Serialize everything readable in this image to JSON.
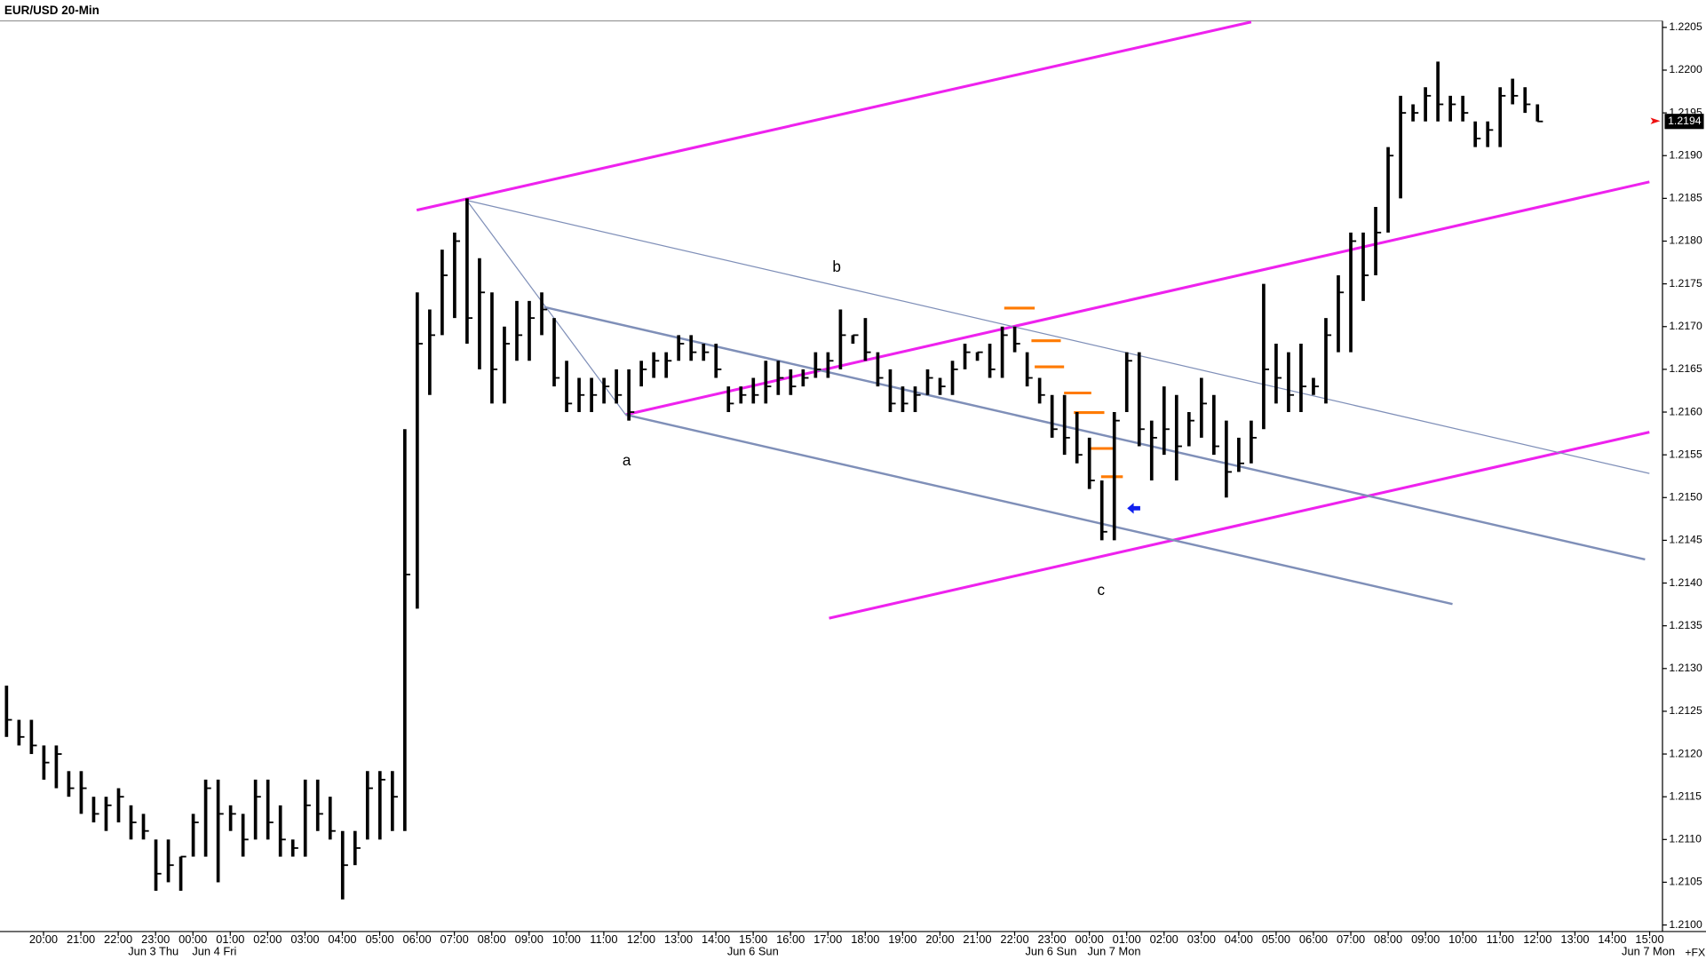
{
  "chart_data": {
    "type": "ohlc",
    "title": "EUR/USD 20-Min",
    "color": "#000000",
    "ylim": [
      1.21,
      1.2205
    ],
    "yticks": [
      1.2205,
      {
        "value": 1.22,
        "label": "1.2200"
      },
      1.2195,
      {
        "value": 1.219,
        "label": "1.2190"
      },
      1.2185,
      {
        "value": 1.218,
        "label": "1.2180"
      },
      1.2175,
      {
        "value": 1.217,
        "label": "1.2170"
      },
      1.2165,
      {
        "value": 1.216,
        "label": "1.2160"
      },
      1.2155,
      {
        "value": 1.215,
        "label": "1.2150"
      },
      1.2145,
      {
        "value": 1.214,
        "label": "1.2140"
      },
      1.2135,
      {
        "value": 1.213,
        "label": "1.2130"
      },
      1.2125,
      {
        "value": 1.212,
        "label": "1.2120"
      },
      1.2115,
      {
        "value": 1.211,
        "label": "1.2110"
      },
      1.2105,
      {
        "value": 1.21,
        "label": "1.2100"
      }
    ],
    "categories": [
      "20:00",
      "21:00",
      "22:00",
      "23:00",
      "00:00",
      "01:00",
      "02:00",
      "03:00",
      "04:00",
      "05:00",
      "06:00",
      "07:00",
      "08:00",
      "09:00",
      "10:00",
      "11:00",
      "12:00",
      "13:00",
      "14:00",
      "15:00",
      "16:00",
      "17:00",
      "18:00",
      "19:00",
      "20:00",
      "21:00",
      "22:00",
      "23:00",
      "00:00",
      "01:00",
      "02:00",
      "03:00",
      "04:00",
      "05:00",
      "06:00",
      "07:00",
      "08:00",
      "09:00",
      "10:00",
      "11:00",
      "12:00",
      "13:00",
      "14:00",
      "15:00"
    ],
    "date_labels": [
      "Jun 3 Thu",
      "Jun 4 Fri",
      "Jun 6 Sun",
      "Jun 6 Sun",
      "Jun 7 Mon",
      "Jun 7 Mon"
    ],
    "feed_label": "+FX",
    "annotations": [
      "a",
      "b",
      "c"
    ],
    "last_price": {
      "value": 1.2194,
      "label": "1.2194"
    },
    "high": [
      1.2128,
      1.2124,
      1.2124,
      1.2121,
      1.2121,
      1.2118,
      1.2118,
      1.2115,
      1.2115,
      1.2116,
      1.2114,
      1.2113,
      1.211,
      1.211,
      1.2108,
      1.2113,
      1.2117,
      1.2117,
      1.2114,
      1.2113,
      1.2117,
      1.2117,
      1.2114,
      1.211,
      1.2117,
      1.2117,
      1.2115,
      1.2111,
      1.2111,
      1.2118,
      1.2118,
      1.2118,
      1.2158,
      1.2174,
      1.2172,
      1.2179,
      1.2181,
      1.2185,
      1.2178,
      1.2174,
      1.217,
      1.2173,
      1.2173,
      1.2174,
      1.2171,
      1.2166,
      1.2164,
      1.2164,
      1.2164,
      1.2165,
      1.2165,
      1.2166,
      1.2167,
      1.2167,
      1.2169,
      1.2169,
      1.2168,
      1.2168,
      1.2163,
      1.2163,
      1.2164,
      1.2166,
      1.2166,
      1.2165,
      1.2165,
      1.2167,
      1.2167,
      1.2172,
      1.2169,
      1.2171,
      1.2167,
      1.2165,
      1.2163,
      1.2163,
      1.2165,
      1.2164,
      1.2166,
      1.2168,
      1.2167,
      1.2168,
      1.217,
      1.217,
      1.2167,
      1.2164,
      1.2162,
      1.2162,
      1.216,
      1.2157,
      1.2152,
      1.216,
      1.2167,
      1.2167,
      1.2159,
      1.2163,
      1.2162,
      1.216,
      1.2164,
      1.2162,
      1.2159,
      1.2157,
      1.2159,
      1.2175,
      1.2168,
      1.2167,
      1.2168,
      1.2164,
      1.2171,
      1.2176,
      1.2181,
      1.2181,
      1.2184,
      1.2191,
      1.2197,
      1.2196,
      1.2198,
      1.2201,
      1.2197,
      1.2197,
      1.2194,
      1.2194,
      1.2198,
      1.2199,
      1.2198,
      1.2196
    ],
    "low": [
      1.2122,
      1.2121,
      1.212,
      1.2117,
      1.2116,
      1.2115,
      1.2113,
      1.2112,
      1.2111,
      1.2112,
      1.211,
      1.211,
      1.2104,
      1.2105,
      1.2104,
      1.2108,
      1.2108,
      1.2105,
      1.2111,
      1.2108,
      1.211,
      1.211,
      1.2108,
      1.2108,
      1.2108,
      1.2111,
      1.211,
      1.2103,
      1.2107,
      1.211,
      1.211,
      1.2111,
      1.2111,
      1.2137,
      1.2162,
      1.2169,
      1.2171,
      1.2168,
      1.2165,
      1.2161,
      1.2161,
      1.2166,
      1.2166,
      1.2169,
      1.2163,
      1.216,
      1.216,
      1.216,
      1.2161,
      1.2161,
      1.2159,
      1.2163,
      1.2164,
      1.2164,
      1.2166,
      1.2166,
      1.2166,
      1.2164,
      1.216,
      1.2161,
      1.2161,
      1.2161,
      1.2162,
      1.2162,
      1.2163,
      1.2164,
      1.2164,
      1.2165,
      1.2168,
      1.2166,
      1.2163,
      1.216,
      1.216,
      1.216,
      1.2162,
      1.2162,
      1.2162,
      1.2165,
      1.2166,
      1.2164,
      1.2164,
      1.2167,
      1.2163,
      1.2161,
      1.2157,
      1.2155,
      1.2154,
      1.2151,
      1.2145,
      1.2145,
      1.216,
      1.2156,
      1.2152,
      1.2155,
      1.2152,
      1.2156,
      1.2157,
      1.2155,
      1.215,
      1.2153,
      1.2154,
      1.2158,
      1.2161,
      1.216,
      1.216,
      1.2162,
      1.2161,
      1.2167,
      1.2167,
      1.2173,
      1.2176,
      1.2181,
      1.2185,
      1.2194,
      1.2194,
      1.2194,
      1.2194,
      1.2194,
      1.2191,
      1.2191,
      1.2191,
      1.2196,
      1.2195,
      1.2194
    ],
    "close": [
      1.2124,
      1.2122,
      1.2121,
      1.2119,
      1.212,
      1.2116,
      1.2116,
      1.2113,
      1.2114,
      1.2115,
      1.2112,
      1.2111,
      1.2106,
      1.2107,
      1.2108,
      1.2112,
      1.2116,
      1.2113,
      1.2113,
      1.211,
      1.2115,
      1.2112,
      1.211,
      1.2109,
      1.2114,
      1.2113,
      1.2111,
      1.2107,
      1.2109,
      1.2116,
      1.2117,
      1.2115,
      1.2141,
      1.2168,
      1.2169,
      1.2176,
      1.218,
      1.2171,
      1.2174,
      1.2165,
      1.2168,
      1.2169,
      1.2171,
      1.2172,
      1.2164,
      1.2161,
      1.2162,
      1.2162,
      1.2163,
      1.2162,
      1.216,
      1.2165,
      1.2166,
      1.2166,
      1.2168,
      1.2167,
      1.2167,
      1.2165,
      1.2161,
      1.2162,
      1.2162,
      1.2163,
      1.2164,
      1.2163,
      1.2164,
      1.2165,
      1.2166,
      1.2169,
      1.2169,
      1.2167,
      1.2164,
      1.2161,
      1.2161,
      1.2162,
      1.2164,
      1.2163,
      1.2165,
      1.2167,
      1.2167,
      1.2165,
      1.2169,
      1.2168,
      1.2164,
      1.2162,
      1.2158,
      1.2157,
      1.2155,
      1.2152,
      1.2146,
      1.2159,
      1.2166,
      1.2158,
      1.2157,
      1.2158,
      1.2156,
      1.2159,
      1.2161,
      1.2156,
      1.2153,
      1.2154,
      1.2157,
      1.2165,
      1.2164,
      1.2162,
      1.2163,
      1.2163,
      1.2169,
      1.2174,
      1.218,
      1.2176,
      1.2181,
      1.219,
      1.2195,
      1.2195,
      1.2197,
      1.2196,
      1.2196,
      1.2195,
      1.2192,
      1.2193,
      1.2197,
      1.2197,
      1.2196,
      1.2194
    ]
  }
}
